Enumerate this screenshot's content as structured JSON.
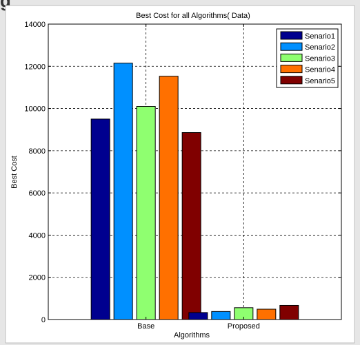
{
  "window": {
    "top_title": "g"
  },
  "chart_data": {
    "type": "bar",
    "title": "Best Cost for all Algorithms( Data)",
    "xlabel": "Algorithms",
    "ylabel": "Best Cost",
    "categories": [
      "Base",
      "Proposed"
    ],
    "ylim": [
      0,
      14000
    ],
    "yticks": [
      0,
      2000,
      4000,
      6000,
      8000,
      10000,
      12000,
      14000
    ],
    "grid": true,
    "legend_position": "top-right",
    "series": [
      {
        "name": "Senario1",
        "color": "#00008f",
        "values": [
          9500,
          330
        ]
      },
      {
        "name": "Senario2",
        "color": "#0090ff",
        "values": [
          12150,
          380
        ]
      },
      {
        "name": "Senario3",
        "color": "#8fff70",
        "values": [
          10100,
          560
        ]
      },
      {
        "name": "Senario4",
        "color": "#ff7000",
        "values": [
          11530,
          490
        ]
      },
      {
        "name": "Senario5",
        "color": "#800000",
        "values": [
          8860,
          670
        ]
      }
    ]
  }
}
